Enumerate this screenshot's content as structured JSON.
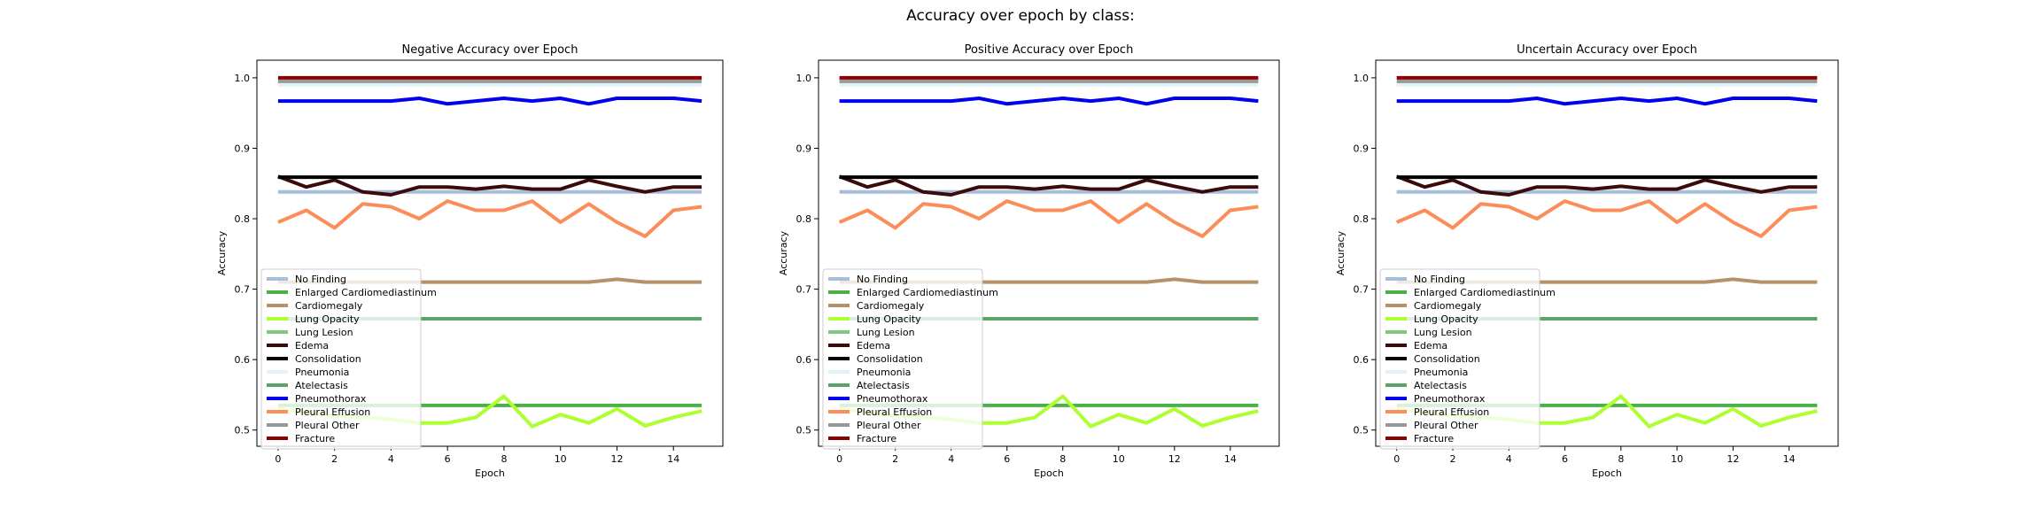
{
  "figure": {
    "suptitle": "Accuracy over epoch by class:"
  },
  "chart_data": [
    {
      "type": "line",
      "title": "Negative Accuracy over Epoch",
      "xlabel": "Epoch",
      "ylabel": "Accuracy",
      "xlim": [
        -0.75,
        15.75
      ],
      "ylim": [
        0.477,
        1.025
      ],
      "xticks": [
        0,
        2,
        4,
        6,
        8,
        10,
        12,
        14
      ],
      "yticks": [
        0.5,
        0.6,
        0.7,
        0.8,
        0.9,
        1.0
      ],
      "ytick_labels": [
        "0.5",
        "0.6",
        "0.7",
        "0.8",
        "0.9",
        "1.0"
      ],
      "grid": false,
      "legend": "lower-left",
      "x": [
        0,
        1,
        2,
        3,
        4,
        5,
        6,
        7,
        8,
        9,
        10,
        11,
        12,
        13,
        14,
        15
      ],
      "series": [
        {
          "name": "No Finding",
          "color": "#a6bddb",
          "values": [
            0.838,
            0.838,
            0.838,
            0.838,
            0.838,
            0.838,
            0.838,
            0.838,
            0.838,
            0.838,
            0.838,
            0.838,
            0.838,
            0.838,
            0.838,
            0.838
          ]
        },
        {
          "name": "Enlarged Cardiomediastinum",
          "color": "#4daf4a",
          "values": [
            0.535,
            0.535,
            0.535,
            0.535,
            0.535,
            0.535,
            0.535,
            0.535,
            0.535,
            0.535,
            0.535,
            0.535,
            0.535,
            0.535,
            0.535,
            0.535
          ]
        },
        {
          "name": "Cardiomegaly",
          "color": "#b5916a",
          "values": [
            0.71,
            0.71,
            0.71,
            0.71,
            0.71,
            0.71,
            0.71,
            0.71,
            0.71,
            0.71,
            0.71,
            0.71,
            0.714,
            0.71,
            0.71,
            0.71
          ]
        },
        {
          "name": "Lung Opacity",
          "color": "#adff2f",
          "values": [
            0.53,
            0.525,
            0.52,
            0.518,
            0.515,
            0.51,
            0.51,
            0.518,
            0.548,
            0.505,
            0.522,
            0.51,
            0.53,
            0.506,
            0.518,
            0.527
          ]
        },
        {
          "name": "Lung Lesion",
          "color": "#7fc97f",
          "values": [
            0.658,
            0.658,
            0.658,
            0.658,
            0.658,
            0.658,
            0.658,
            0.658,
            0.658,
            0.658,
            0.658,
            0.658,
            0.658,
            0.658,
            0.658,
            0.658
          ]
        },
        {
          "name": "Edema",
          "color": "#3b0a0a",
          "values": [
            0.86,
            0.845,
            0.855,
            0.838,
            0.834,
            0.845,
            0.845,
            0.842,
            0.846,
            0.842,
            0.842,
            0.855,
            0.846,
            0.838,
            0.845,
            0.845
          ]
        },
        {
          "name": "Consolidation",
          "color": "#000000",
          "values": [
            0.859,
            0.859,
            0.859,
            0.859,
            0.859,
            0.859,
            0.859,
            0.859,
            0.859,
            0.859,
            0.859,
            0.859,
            0.859,
            0.859,
            0.859,
            0.859
          ]
        },
        {
          "name": "Pneumonia",
          "color": "#e0f3f8",
          "values": [
            0.99,
            0.99,
            0.99,
            0.99,
            0.99,
            0.99,
            0.99,
            0.99,
            0.99,
            0.99,
            0.99,
            0.99,
            0.99,
            0.99,
            0.99,
            0.99
          ]
        },
        {
          "name": "Atelectasis",
          "color": "#5aa469",
          "values": [
            0.658,
            0.658,
            0.658,
            0.658,
            0.658,
            0.658,
            0.658,
            0.658,
            0.658,
            0.658,
            0.658,
            0.658,
            0.658,
            0.658,
            0.658,
            0.658
          ]
        },
        {
          "name": "Pneumothorax",
          "color": "#0000ee",
          "values": [
            0.967,
            0.967,
            0.967,
            0.967,
            0.967,
            0.971,
            0.963,
            0.967,
            0.971,
            0.967,
            0.971,
            0.963,
            0.971,
            0.971,
            0.971,
            0.967
          ]
        },
        {
          "name": "Pleural Effusion",
          "color": "#fc8d59",
          "values": [
            0.795,
            0.812,
            0.787,
            0.821,
            0.817,
            0.8,
            0.825,
            0.812,
            0.812,
            0.825,
            0.795,
            0.821,
            0.795,
            0.775,
            0.812,
            0.817
          ]
        },
        {
          "name": "Pleural Other",
          "color": "#999999",
          "values": [
            0.995,
            0.995,
            0.995,
            0.995,
            0.995,
            0.995,
            0.995,
            0.995,
            0.995,
            0.995,
            0.995,
            0.995,
            0.995,
            0.995,
            0.995,
            0.995
          ]
        },
        {
          "name": "Fracture",
          "color": "#8b0000",
          "values": [
            1.0,
            1.0,
            1.0,
            1.0,
            1.0,
            1.0,
            1.0,
            1.0,
            1.0,
            1.0,
            1.0,
            1.0,
            1.0,
            1.0,
            1.0,
            1.0
          ]
        }
      ]
    },
    {
      "type": "line",
      "title": "Positive Accuracy over Epoch",
      "xlabel": "Epoch",
      "ylabel": "Accuracy",
      "xlim": [
        -0.75,
        15.75
      ],
      "ylim": [
        0.477,
        1.025
      ],
      "xticks": [
        0,
        2,
        4,
        6,
        8,
        10,
        12,
        14
      ],
      "yticks": [
        0.5,
        0.6,
        0.7,
        0.8,
        0.9,
        1.0
      ],
      "ytick_labels": [
        "0.5",
        "0.6",
        "0.7",
        "0.8",
        "0.9",
        "1.0"
      ],
      "grid": false,
      "legend": "lower-left",
      "x": [
        0,
        1,
        2,
        3,
        4,
        5,
        6,
        7,
        8,
        9,
        10,
        11,
        12,
        13,
        14,
        15
      ],
      "series": [
        {
          "name": "No Finding",
          "color": "#a6bddb",
          "values": [
            0.838,
            0.838,
            0.838,
            0.838,
            0.838,
            0.838,
            0.838,
            0.838,
            0.838,
            0.838,
            0.838,
            0.838,
            0.838,
            0.838,
            0.838,
            0.838
          ]
        },
        {
          "name": "Enlarged Cardiomediastinum",
          "color": "#4daf4a",
          "values": [
            0.535,
            0.535,
            0.535,
            0.535,
            0.535,
            0.535,
            0.535,
            0.535,
            0.535,
            0.535,
            0.535,
            0.535,
            0.535,
            0.535,
            0.535,
            0.535
          ]
        },
        {
          "name": "Cardiomegaly",
          "color": "#b5916a",
          "values": [
            0.71,
            0.71,
            0.71,
            0.71,
            0.71,
            0.71,
            0.71,
            0.71,
            0.71,
            0.71,
            0.71,
            0.71,
            0.714,
            0.71,
            0.71,
            0.71
          ]
        },
        {
          "name": "Lung Opacity",
          "color": "#adff2f",
          "values": [
            0.53,
            0.525,
            0.52,
            0.518,
            0.515,
            0.51,
            0.51,
            0.518,
            0.548,
            0.505,
            0.522,
            0.51,
            0.53,
            0.506,
            0.518,
            0.527
          ]
        },
        {
          "name": "Lung Lesion",
          "color": "#7fc97f",
          "values": [
            0.658,
            0.658,
            0.658,
            0.658,
            0.658,
            0.658,
            0.658,
            0.658,
            0.658,
            0.658,
            0.658,
            0.658,
            0.658,
            0.658,
            0.658,
            0.658
          ]
        },
        {
          "name": "Edema",
          "color": "#3b0a0a",
          "values": [
            0.86,
            0.845,
            0.855,
            0.838,
            0.834,
            0.845,
            0.845,
            0.842,
            0.846,
            0.842,
            0.842,
            0.855,
            0.846,
            0.838,
            0.845,
            0.845
          ]
        },
        {
          "name": "Consolidation",
          "color": "#000000",
          "values": [
            0.859,
            0.859,
            0.859,
            0.859,
            0.859,
            0.859,
            0.859,
            0.859,
            0.859,
            0.859,
            0.859,
            0.859,
            0.859,
            0.859,
            0.859,
            0.859
          ]
        },
        {
          "name": "Pneumonia",
          "color": "#e0f3f8",
          "values": [
            0.99,
            0.99,
            0.99,
            0.99,
            0.99,
            0.99,
            0.99,
            0.99,
            0.99,
            0.99,
            0.99,
            0.99,
            0.99,
            0.99,
            0.99,
            0.99
          ]
        },
        {
          "name": "Atelectasis",
          "color": "#5aa469",
          "values": [
            0.658,
            0.658,
            0.658,
            0.658,
            0.658,
            0.658,
            0.658,
            0.658,
            0.658,
            0.658,
            0.658,
            0.658,
            0.658,
            0.658,
            0.658,
            0.658
          ]
        },
        {
          "name": "Pneumothorax",
          "color": "#0000ee",
          "values": [
            0.967,
            0.967,
            0.967,
            0.967,
            0.967,
            0.971,
            0.963,
            0.967,
            0.971,
            0.967,
            0.971,
            0.963,
            0.971,
            0.971,
            0.971,
            0.967
          ]
        },
        {
          "name": "Pleural Effusion",
          "color": "#fc8d59",
          "values": [
            0.795,
            0.812,
            0.787,
            0.821,
            0.817,
            0.8,
            0.825,
            0.812,
            0.812,
            0.825,
            0.795,
            0.821,
            0.795,
            0.775,
            0.812,
            0.817
          ]
        },
        {
          "name": "Pleural Other",
          "color": "#999999",
          "values": [
            0.995,
            0.995,
            0.995,
            0.995,
            0.995,
            0.995,
            0.995,
            0.995,
            0.995,
            0.995,
            0.995,
            0.995,
            0.995,
            0.995,
            0.995,
            0.995
          ]
        },
        {
          "name": "Fracture",
          "color": "#8b0000",
          "values": [
            1.0,
            1.0,
            1.0,
            1.0,
            1.0,
            1.0,
            1.0,
            1.0,
            1.0,
            1.0,
            1.0,
            1.0,
            1.0,
            1.0,
            1.0,
            1.0
          ]
        }
      ]
    },
    {
      "type": "line",
      "title": "Uncertain Accuracy over Epoch",
      "xlabel": "Epoch",
      "ylabel": "Accuracy",
      "xlim": [
        -0.75,
        15.75
      ],
      "ylim": [
        0.477,
        1.025
      ],
      "xticks": [
        0,
        2,
        4,
        6,
        8,
        10,
        12,
        14
      ],
      "yticks": [
        0.5,
        0.6,
        0.7,
        0.8,
        0.9,
        1.0
      ],
      "ytick_labels": [
        "0.5",
        "0.6",
        "0.7",
        "0.8",
        "0.9",
        "1.0"
      ],
      "grid": false,
      "legend": "lower-left",
      "x": [
        0,
        1,
        2,
        3,
        4,
        5,
        6,
        7,
        8,
        9,
        10,
        11,
        12,
        13,
        14,
        15
      ],
      "series": [
        {
          "name": "No Finding",
          "color": "#a6bddb",
          "values": [
            0.838,
            0.838,
            0.838,
            0.838,
            0.838,
            0.838,
            0.838,
            0.838,
            0.838,
            0.838,
            0.838,
            0.838,
            0.838,
            0.838,
            0.838,
            0.838
          ]
        },
        {
          "name": "Enlarged Cardiomediastinum",
          "color": "#4daf4a",
          "values": [
            0.535,
            0.535,
            0.535,
            0.535,
            0.535,
            0.535,
            0.535,
            0.535,
            0.535,
            0.535,
            0.535,
            0.535,
            0.535,
            0.535,
            0.535,
            0.535
          ]
        },
        {
          "name": "Cardiomegaly",
          "color": "#b5916a",
          "values": [
            0.71,
            0.71,
            0.71,
            0.71,
            0.71,
            0.71,
            0.71,
            0.71,
            0.71,
            0.71,
            0.71,
            0.71,
            0.714,
            0.71,
            0.71,
            0.71
          ]
        },
        {
          "name": "Lung Opacity",
          "color": "#adff2f",
          "values": [
            0.53,
            0.525,
            0.52,
            0.518,
            0.515,
            0.51,
            0.51,
            0.518,
            0.548,
            0.505,
            0.522,
            0.51,
            0.53,
            0.506,
            0.518,
            0.527
          ]
        },
        {
          "name": "Lung Lesion",
          "color": "#7fc97f",
          "values": [
            0.658,
            0.658,
            0.658,
            0.658,
            0.658,
            0.658,
            0.658,
            0.658,
            0.658,
            0.658,
            0.658,
            0.658,
            0.658,
            0.658,
            0.658,
            0.658
          ]
        },
        {
          "name": "Edema",
          "color": "#3b0a0a",
          "values": [
            0.86,
            0.845,
            0.855,
            0.838,
            0.834,
            0.845,
            0.845,
            0.842,
            0.846,
            0.842,
            0.842,
            0.855,
            0.846,
            0.838,
            0.845,
            0.845
          ]
        },
        {
          "name": "Consolidation",
          "color": "#000000",
          "values": [
            0.859,
            0.859,
            0.859,
            0.859,
            0.859,
            0.859,
            0.859,
            0.859,
            0.859,
            0.859,
            0.859,
            0.859,
            0.859,
            0.859,
            0.859,
            0.859
          ]
        },
        {
          "name": "Pneumonia",
          "color": "#e0f3f8",
          "values": [
            0.99,
            0.99,
            0.99,
            0.99,
            0.99,
            0.99,
            0.99,
            0.99,
            0.99,
            0.99,
            0.99,
            0.99,
            0.99,
            0.99,
            0.99,
            0.99
          ]
        },
        {
          "name": "Atelectasis",
          "color": "#5aa469",
          "values": [
            0.658,
            0.658,
            0.658,
            0.658,
            0.658,
            0.658,
            0.658,
            0.658,
            0.658,
            0.658,
            0.658,
            0.658,
            0.658,
            0.658,
            0.658,
            0.658
          ]
        },
        {
          "name": "Pneumothorax",
          "color": "#0000ee",
          "values": [
            0.967,
            0.967,
            0.967,
            0.967,
            0.967,
            0.971,
            0.963,
            0.967,
            0.971,
            0.967,
            0.971,
            0.963,
            0.971,
            0.971,
            0.971,
            0.967
          ]
        },
        {
          "name": "Pleural Effusion",
          "color": "#fc8d59",
          "values": [
            0.795,
            0.812,
            0.787,
            0.821,
            0.817,
            0.8,
            0.825,
            0.812,
            0.812,
            0.825,
            0.795,
            0.821,
            0.795,
            0.775,
            0.812,
            0.817
          ]
        },
        {
          "name": "Pleural Other",
          "color": "#999999",
          "values": [
            0.995,
            0.995,
            0.995,
            0.995,
            0.995,
            0.995,
            0.995,
            0.995,
            0.995,
            0.995,
            0.995,
            0.995,
            0.995,
            0.995,
            0.995,
            0.995
          ]
        },
        {
          "name": "Fracture",
          "color": "#8b0000",
          "values": [
            1.0,
            1.0,
            1.0,
            1.0,
            1.0,
            1.0,
            1.0,
            1.0,
            1.0,
            1.0,
            1.0,
            1.0,
            1.0,
            1.0,
            1.0,
            1.0
          ]
        }
      ]
    }
  ]
}
